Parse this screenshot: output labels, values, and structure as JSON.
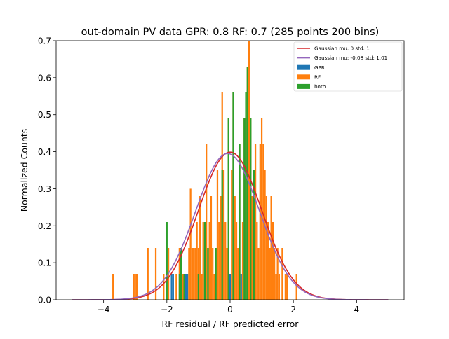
{
  "chart_data": {
    "type": "bar",
    "title": "out-domain PV data GPR: 0.8 RF: 0.7 (285 points 200 bins)",
    "xlabel": "RF residual / RF predicted error",
    "ylabel": "Normalized Counts",
    "xlim": [
      -5.5,
      5.5
    ],
    "ylim": [
      0,
      0.7
    ],
    "xticks": [
      -4,
      -2,
      0,
      2,
      4
    ],
    "yticks": [
      0.0,
      0.1,
      0.2,
      0.3,
      0.4,
      0.5,
      0.6,
      0.7
    ],
    "xtick_labels": [
      "−4",
      "−2",
      "0",
      "2",
      "4"
    ],
    "ytick_labels": [
      "0.0",
      "0.1",
      "0.2",
      "0.3",
      "0.4",
      "0.5",
      "0.6",
      "0.7"
    ],
    "grid": false,
    "legend_position": "top-right",
    "bin_width": 0.05,
    "colors": {
      "gpr": "#1f77b4",
      "rf": "#ff7f0e",
      "both": "#2ca02c",
      "gauss_std": "#d62728",
      "gauss_fit": "#9467bd"
    },
    "curves": [
      {
        "name": "Gaussian mu: 0 std: 1",
        "mu": 0,
        "sigma": 1,
        "x_range": [
          -5,
          5
        ],
        "color": "#d62728"
      },
      {
        "name": "Gaussian mu: -0.08 std: 1.01",
        "mu": -0.08,
        "sigma": 1.01,
        "x_range": [
          -5,
          5
        ],
        "color": "#9467bd"
      }
    ],
    "legend": [
      {
        "label": "Gaussian mu: 0 std: 1",
        "kind": "line",
        "color": "#d62728"
      },
      {
        "label": "Gaussian mu: -0.08 std: 1.01",
        "kind": "line",
        "color": "#9467bd"
      },
      {
        "label": "GPR",
        "kind": "patch",
        "color": "#1f77b4"
      },
      {
        "label": "RF",
        "kind": "patch",
        "color": "#ff7f0e"
      },
      {
        "label": "both",
        "kind": "patch",
        "color": "#2ca02c"
      }
    ],
    "series": [
      {
        "name": "GPR",
        "color": "#1f77b4",
        "bars": [
          {
            "x": -1.85,
            "h": 0.07
          },
          {
            "x": -1.8,
            "h": 0.07
          },
          {
            "x": -1.4,
            "h": 0.07
          },
          {
            "x": -1.35,
            "h": 0.07
          },
          {
            "x": 0.0,
            "h": 0.07
          },
          {
            "x": 0.35,
            "h": 0.07
          }
        ]
      },
      {
        "name": "RF",
        "color": "#ff7f0e",
        "bars": [
          {
            "x": -3.7,
            "h": 0.07
          },
          {
            "x": -3.05,
            "h": 0.07
          },
          {
            "x": -3.0,
            "h": 0.07
          },
          {
            "x": -2.95,
            "h": 0.07
          },
          {
            "x": -2.6,
            "h": 0.14
          },
          {
            "x": -2.35,
            "h": 0.14
          },
          {
            "x": -2.1,
            "h": 0.07
          },
          {
            "x": -1.95,
            "h": 0.14
          },
          {
            "x": -1.7,
            "h": 0.07
          },
          {
            "x": -1.6,
            "h": 0.14
          },
          {
            "x": -1.5,
            "h": 0.07
          },
          {
            "x": -1.3,
            "h": 0.14
          },
          {
            "x": -1.25,
            "h": 0.3
          },
          {
            "x": -1.2,
            "h": 0.14
          },
          {
            "x": -1.15,
            "h": 0.14
          },
          {
            "x": -1.1,
            "h": 0.14
          },
          {
            "x": -1.05,
            "h": 0.21
          },
          {
            "x": -1.0,
            "h": 0.14
          },
          {
            "x": -0.95,
            "h": 0.28
          },
          {
            "x": -0.9,
            "h": 0.07
          },
          {
            "x": -0.85,
            "h": 0.21
          },
          {
            "x": -0.75,
            "h": 0.42
          },
          {
            "x": -0.7,
            "h": 0.14
          },
          {
            "x": -0.65,
            "h": 0.21
          },
          {
            "x": -0.6,
            "h": 0.28
          },
          {
            "x": -0.55,
            "h": 0.14
          },
          {
            "x": -0.5,
            "h": 0.07
          },
          {
            "x": -0.45,
            "h": 0.14
          },
          {
            "x": -0.4,
            "h": 0.35
          },
          {
            "x": -0.35,
            "h": 0.21
          },
          {
            "x": -0.3,
            "h": 0.28
          },
          {
            "x": -0.25,
            "h": 0.56
          },
          {
            "x": -0.2,
            "h": 0.35
          },
          {
            "x": -0.15,
            "h": 0.21
          },
          {
            "x": -0.1,
            "h": 0.14
          },
          {
            "x": -0.05,
            "h": 0.49
          },
          {
            "x": 0.05,
            "h": 0.35
          },
          {
            "x": 0.1,
            "h": 0.56
          },
          {
            "x": 0.15,
            "h": 0.28
          },
          {
            "x": 0.2,
            "h": 0.21
          },
          {
            "x": 0.25,
            "h": 0.14
          },
          {
            "x": 0.3,
            "h": 0.42
          },
          {
            "x": 0.4,
            "h": 0.21
          },
          {
            "x": 0.45,
            "h": 0.49
          },
          {
            "x": 0.55,
            "h": 0.63
          },
          {
            "x": 0.6,
            "h": 0.7
          },
          {
            "x": 0.65,
            "h": 0.49
          },
          {
            "x": 0.7,
            "h": 0.28
          },
          {
            "x": 0.75,
            "h": 0.35
          },
          {
            "x": 0.8,
            "h": 0.42
          },
          {
            "x": 0.85,
            "h": 0.21
          },
          {
            "x": 0.9,
            "h": 0.14
          },
          {
            "x": 0.95,
            "h": 0.42
          },
          {
            "x": 1.0,
            "h": 0.49
          },
          {
            "x": 1.05,
            "h": 0.42
          },
          {
            "x": 1.1,
            "h": 0.35
          },
          {
            "x": 1.15,
            "h": 0.28
          },
          {
            "x": 1.2,
            "h": 0.21
          },
          {
            "x": 1.25,
            "h": 0.14
          },
          {
            "x": 1.3,
            "h": 0.28
          },
          {
            "x": 1.35,
            "h": 0.21
          },
          {
            "x": 1.4,
            "h": 0.14
          },
          {
            "x": 1.45,
            "h": 0.07
          },
          {
            "x": 1.5,
            "h": 0.14
          },
          {
            "x": 1.55,
            "h": 0.07
          },
          {
            "x": 1.65,
            "h": 0.14
          },
          {
            "x": 1.75,
            "h": 0.07
          },
          {
            "x": 1.8,
            "h": 0.07
          },
          {
            "x": 2.1,
            "h": 0.07
          }
        ]
      },
      {
        "name": "both",
        "color": "#2ca02c",
        "bars": [
          {
            "x": -2.0,
            "h": 0.21
          },
          {
            "x": -1.6,
            "h": 0.07
          },
          {
            "x": -1.55,
            "h": 0.14
          },
          {
            "x": -1.45,
            "h": 0.07
          },
          {
            "x": -1.0,
            "h": 0.07
          },
          {
            "x": -0.8,
            "h": 0.21
          },
          {
            "x": -0.7,
            "h": 0.14
          },
          {
            "x": -0.45,
            "h": 0.14
          },
          {
            "x": -0.25,
            "h": 0.35
          },
          {
            "x": -0.05,
            "h": 0.49
          },
          {
            "x": 0.1,
            "h": 0.56
          },
          {
            "x": 0.3,
            "h": 0.42
          },
          {
            "x": 0.45,
            "h": 0.49
          },
          {
            "x": 0.5,
            "h": 0.56
          },
          {
            "x": 0.55,
            "h": 0.63
          },
          {
            "x": 0.65,
            "h": 0.49
          },
          {
            "x": 0.75,
            "h": 0.35
          }
        ]
      }
    ]
  }
}
